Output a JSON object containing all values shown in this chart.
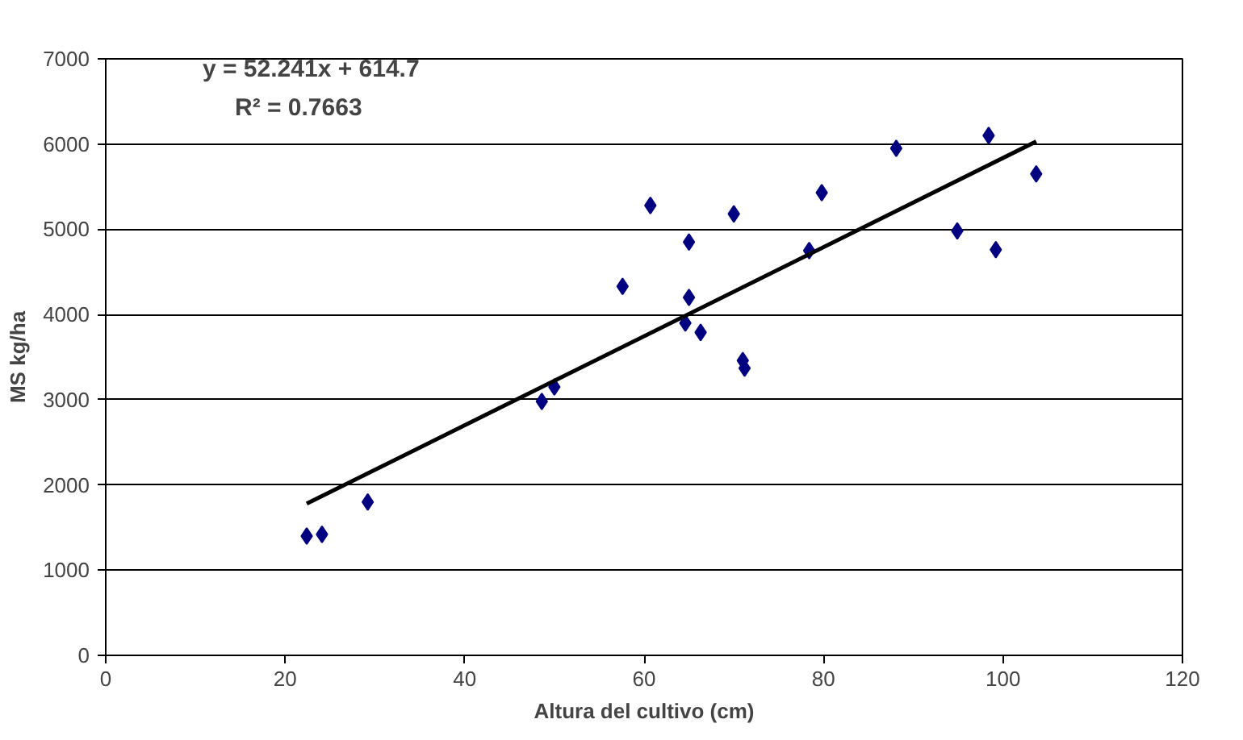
{
  "chart_data": {
    "type": "scatter",
    "xlabel": "Altura del cultivo (cm)",
    "ylabel": "MS kg/ha",
    "xlim": [
      0,
      120
    ],
    "xticks": [
      0,
      20,
      40,
      60,
      80,
      100,
      120
    ],
    "ylim": [
      0,
      7000
    ],
    "yticks": [
      0,
      1000,
      2000,
      3000,
      4000,
      5000,
      6000,
      7000
    ],
    "grid": "y",
    "marker": "diamond",
    "annotations": [
      "y = 52.241x + 614.7",
      "R² = 0.7663"
    ],
    "series": [
      {
        "color": "#000080",
        "x": [
          22.4,
          24.1,
          29.2,
          48.6,
          50.0,
          57.6,
          60.7,
          64.6,
          65.0,
          65.0,
          66.3,
          70.0,
          71.0,
          71.2,
          78.4,
          79.8,
          88.1,
          94.9,
          98.4,
          99.2,
          103.7
        ],
        "values": [
          1400,
          1420,
          1800,
          2980,
          3150,
          4330,
          5280,
          3900,
          4200,
          4850,
          3790,
          5180,
          3460,
          3370,
          4750,
          5430,
          5950,
          4980,
          6100,
          4760,
          5650
        ]
      },
      {
        "type": "line",
        "marker": "none",
        "color": "#000000",
        "x": [
          22.4,
          103.7
        ],
        "values": [
          1780,
          6030
        ]
      }
    ]
  }
}
